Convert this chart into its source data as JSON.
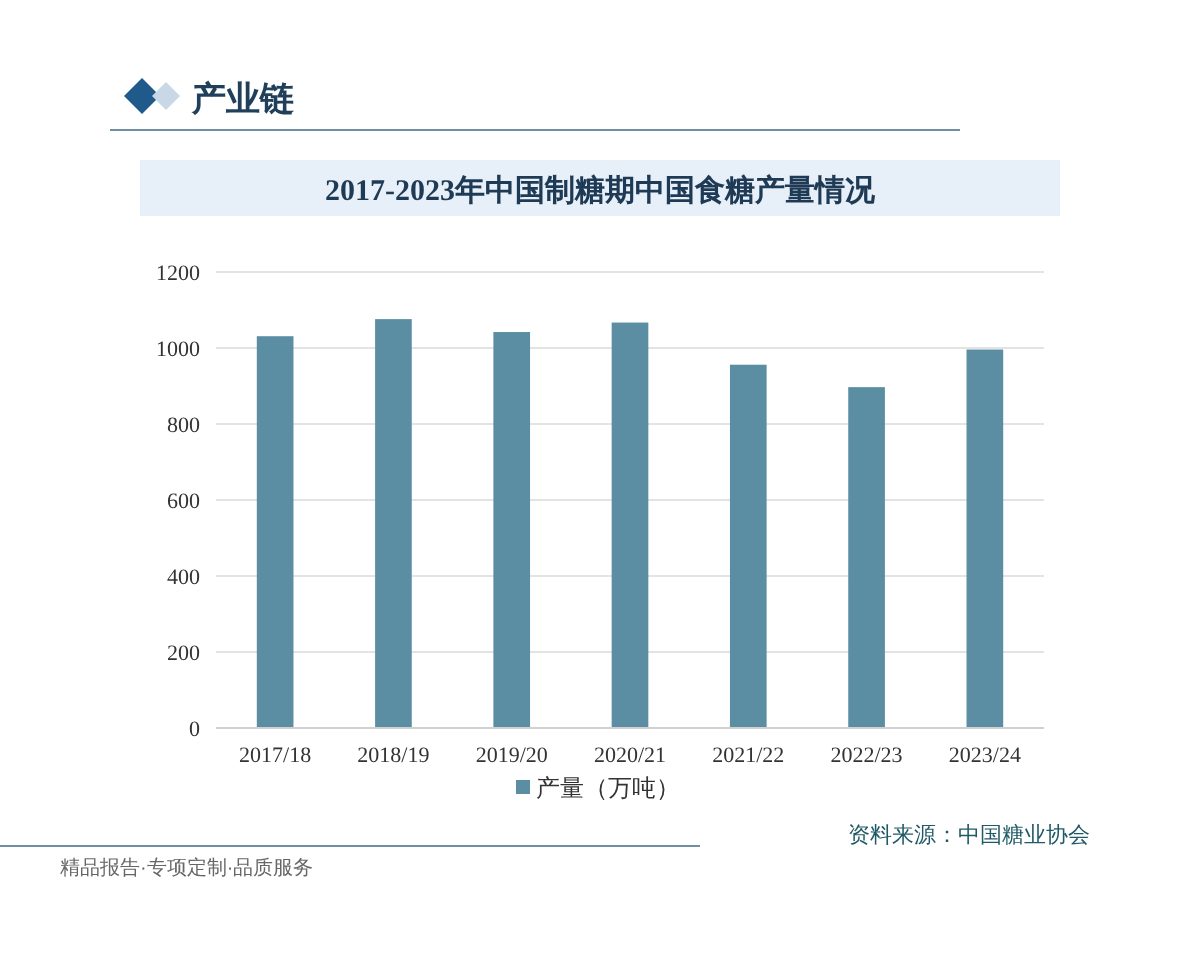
{
  "chart_data": {
    "type": "bar",
    "title": "2017-2023年中国制糖期中国食糖产量情况",
    "categories": [
      "2017/18",
      "2018/19",
      "2019/20",
      "2020/21",
      "2021/22",
      "2022/23",
      "2023/24"
    ],
    "series": [
      {
        "name": "产量（万吨）",
        "color": "#5b8ea3",
        "values": [
          1031,
          1076,
          1042,
          1067,
          956,
          897,
          996
        ]
      }
    ],
    "ylim": [
      0,
      1200
    ],
    "yticks": [
      0,
      200,
      400,
      600,
      800,
      1000,
      1200
    ],
    "grid": "y",
    "legend": "bottom",
    "annotations": [
      "产业链",
      "资料来源：中国糖业协会",
      "精品报告·专项定制·品质服务"
    ]
  }
}
